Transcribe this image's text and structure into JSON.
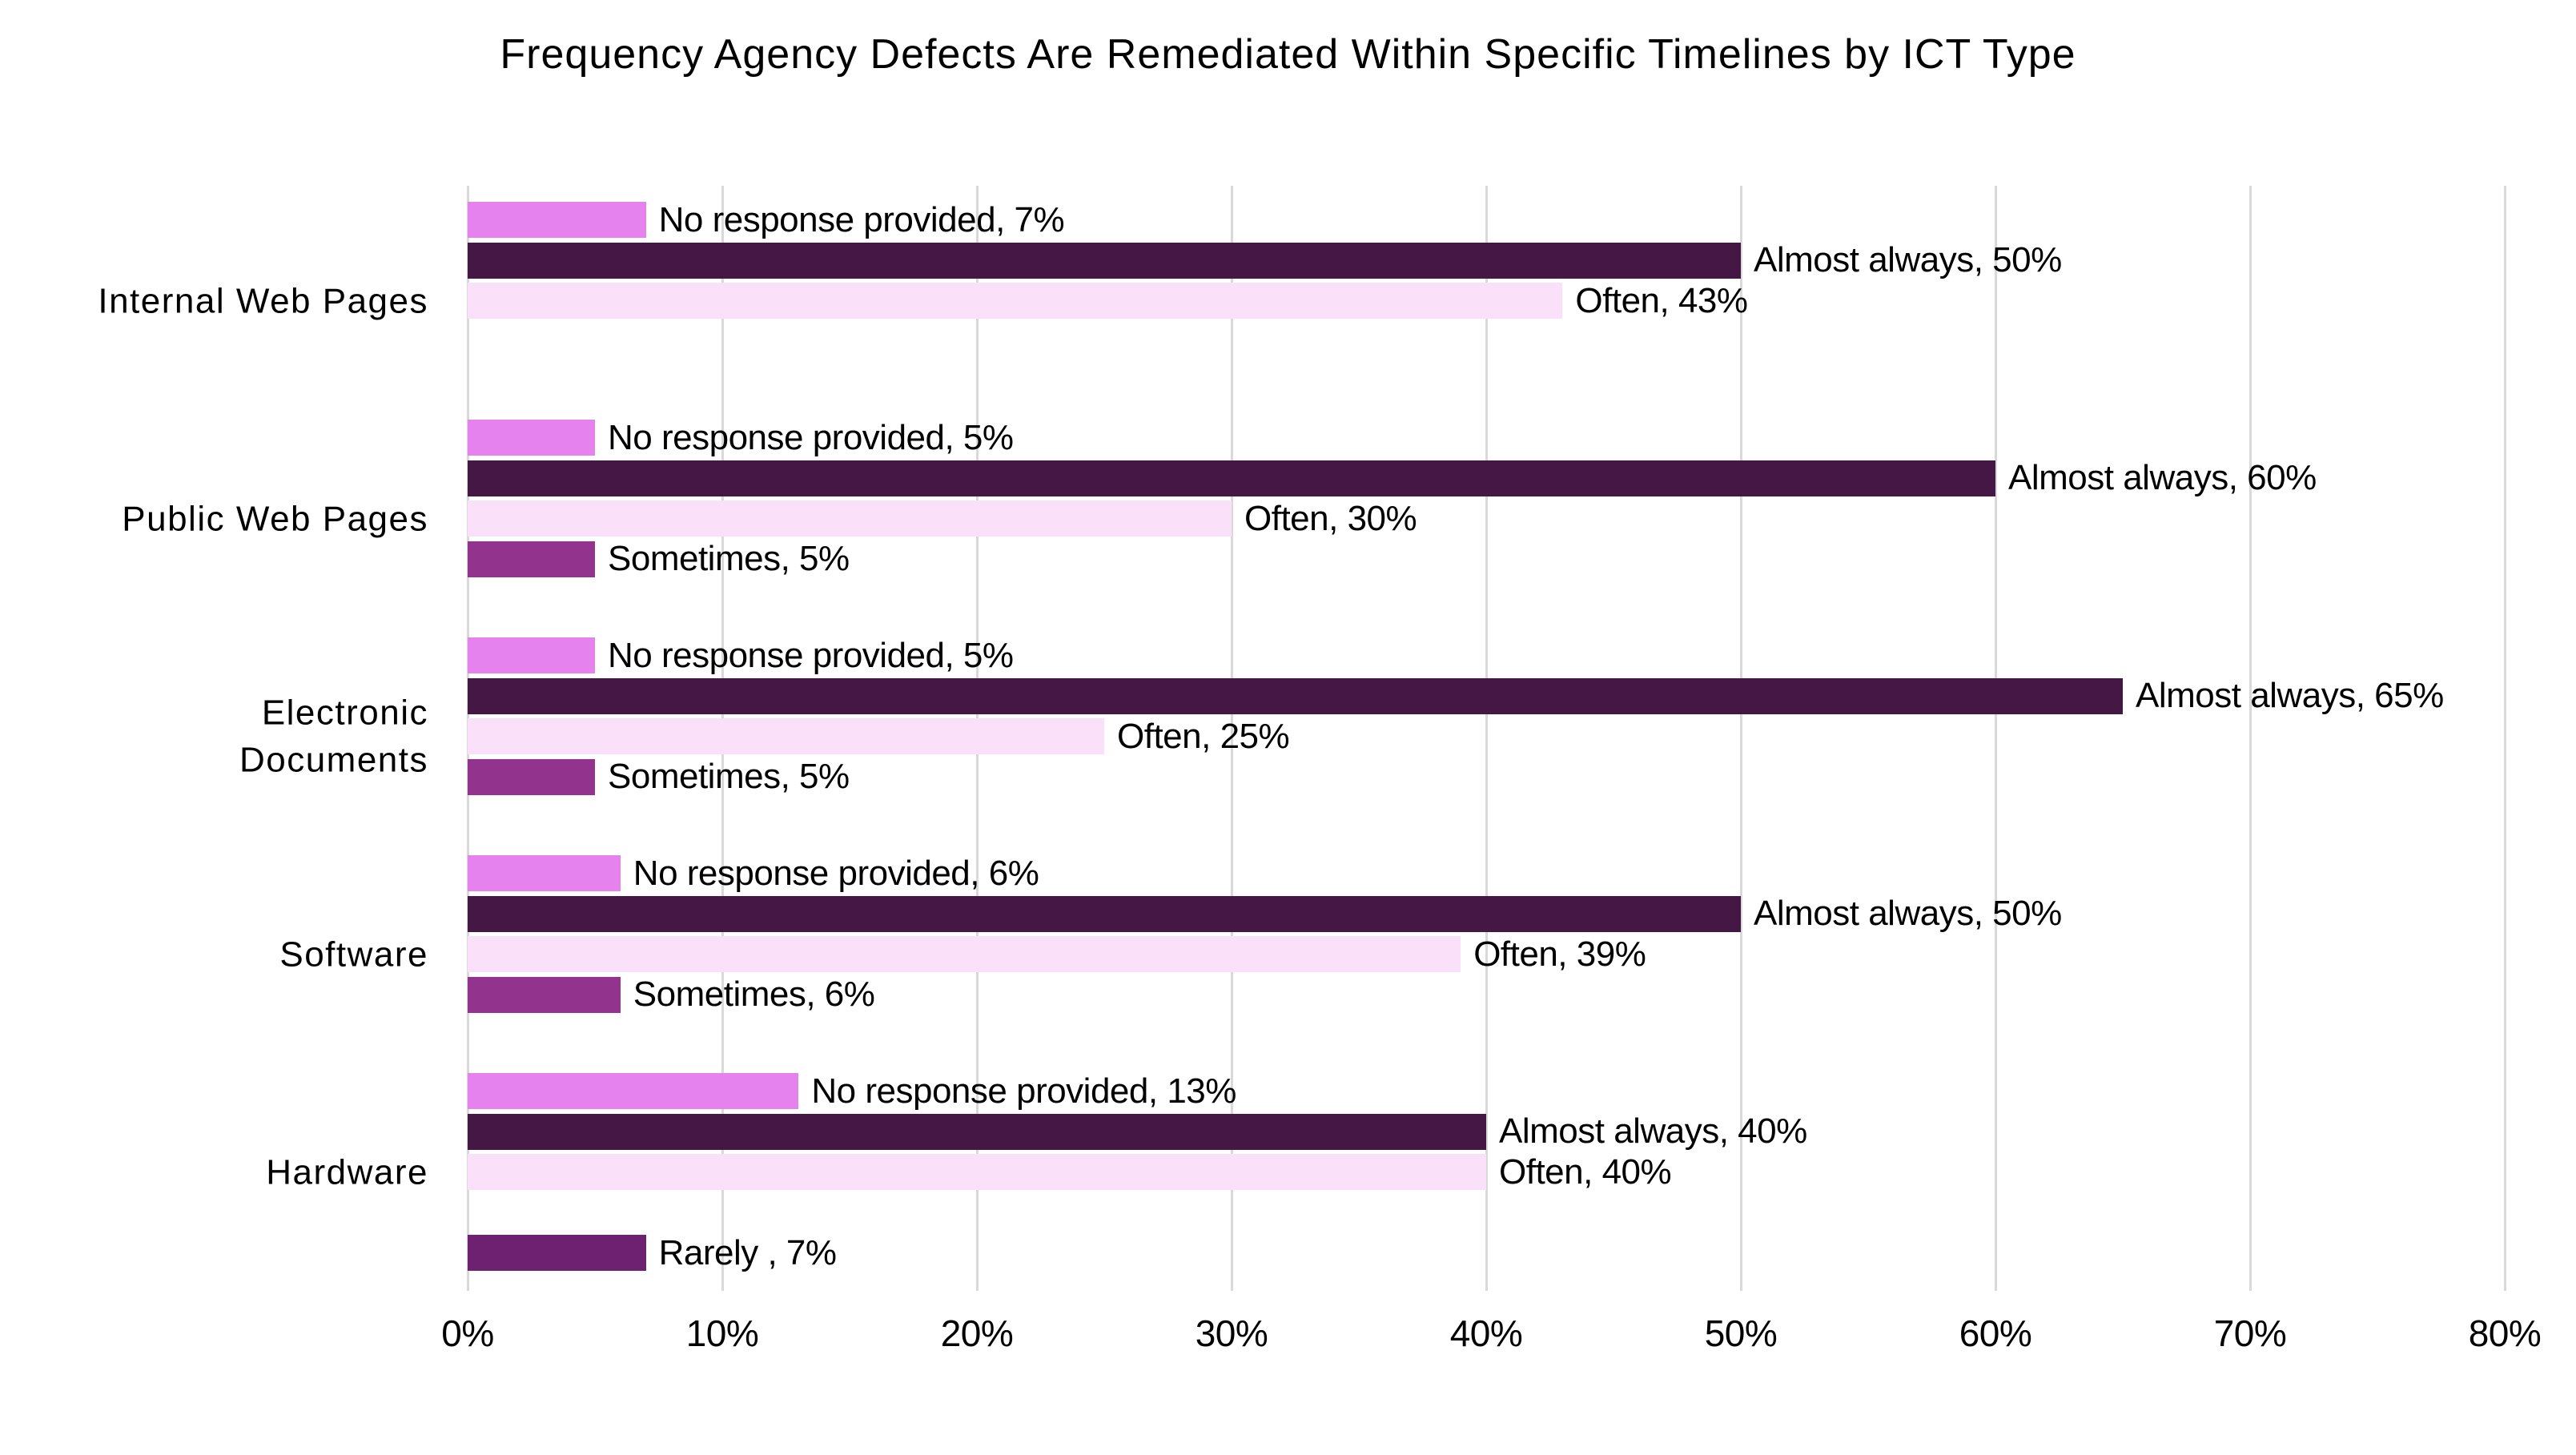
{
  "title": "Frequency Agency Defects Are Remediated Within Specific Timelines by ICT Type",
  "chart_data": {
    "type": "bar",
    "orientation": "horizontal",
    "title": "Frequency Agency Defects Are Remediated Within Specific Timelines by ICT Type",
    "legend": "none",
    "grid": true,
    "x_axis": {
      "min": 0,
      "max": 80,
      "tick_step": 10,
      "tick_labels": [
        "0%",
        "10%",
        "20%",
        "30%",
        "40%",
        "50%",
        "60%",
        "70%",
        "80%"
      ]
    },
    "categories": [
      "Internal Web Pages",
      "Public Web Pages",
      "Electronic\nDocuments",
      "Software",
      "Hardware"
    ],
    "series": [
      {
        "name": "No response provided",
        "color": "#E582EE",
        "values": [
          7,
          5,
          5,
          6,
          13
        ]
      },
      {
        "name": "Almost always",
        "color": "#451744",
        "values": [
          50,
          60,
          65,
          50,
          40
        ]
      },
      {
        "name": "Often",
        "color": "#FAE0F9",
        "values": [
          43,
          30,
          25,
          39,
          40
        ]
      },
      {
        "name": "Sometimes",
        "color": "#92348E",
        "values": [
          0,
          5,
          5,
          6,
          0
        ]
      },
      {
        "name": "Rarely",
        "color": "#6E2170",
        "values": [
          0,
          0,
          0,
          0,
          7
        ]
      }
    ],
    "bar_labels": [
      [
        "No response provided, 7%",
        "Almost always, 50%",
        "Often, 43%",
        "",
        ""
      ],
      [
        "No response provided, 5%",
        "Almost always, 60%",
        "Often, 30%",
        "Sometimes, 5%",
        ""
      ],
      [
        "No response provided, 5%",
        "Almost always, 65%",
        "Often, 25%",
        "Sometimes, 5%",
        ""
      ],
      [
        "No response provided, 6%",
        "Almost always, 50%",
        "Often, 39%",
        "Sometimes, 6%",
        ""
      ],
      [
        "No response provided, 13%",
        "Almost always, 40%",
        "Often, 40%",
        "",
        "Rarely , 7%"
      ]
    ],
    "colors": {
      "background": "#FFFFFF",
      "gridline": "#D9D9D9",
      "text": "#000000"
    }
  }
}
